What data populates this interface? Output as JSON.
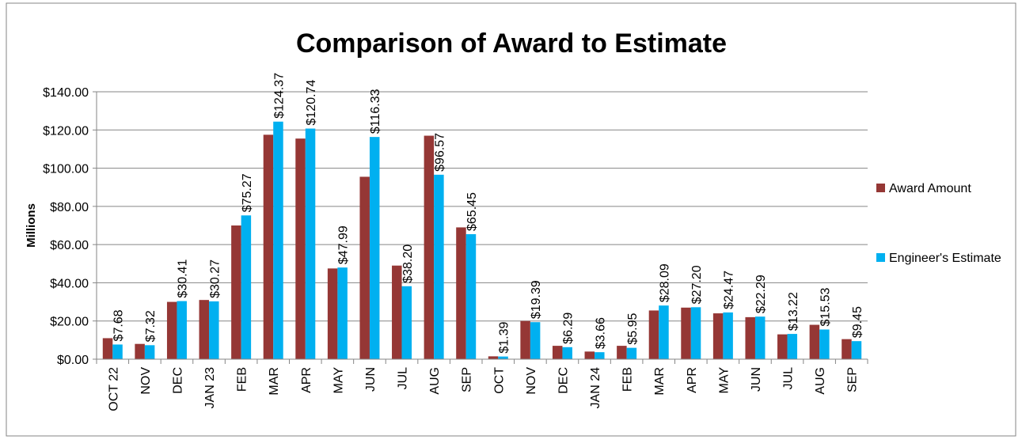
{
  "chart_data": {
    "type": "bar",
    "title": "Comparison of Award to Estimate",
    "y_label": "Millions",
    "categories": [
      "OCT 22",
      "NOV",
      "DEC",
      "JAN 23",
      "FEB",
      "MAR",
      "APR",
      "MAY",
      "JUN",
      "JUL",
      "AUG",
      "SEP",
      "OCT",
      "NOV",
      "DEC",
      "JAN 24",
      "FEB",
      "MAR",
      "APR",
      "MAY",
      "JUN",
      "JUL",
      "AUG",
      "SEP"
    ],
    "series": [
      {
        "name": "Award Amount",
        "color": "#953735",
        "values": [
          11,
          8,
          30,
          31,
          70,
          117.5,
          115.5,
          47.5,
          95.5,
          49,
          117,
          69,
          1.5,
          20,
          7,
          4,
          7,
          25.5,
          27,
          24,
          22,
          13,
          18,
          10.5
        ]
      },
      {
        "name": "Engineer's Estimate",
        "color": "#00b0f0",
        "values": [
          7.68,
          7.32,
          30.41,
          30.27,
          75.27,
          124.37,
          120.74,
          47.99,
          116.33,
          38.2,
          96.57,
          65.45,
          1.39,
          19.39,
          6.29,
          3.66,
          5.95,
          28.09,
          27.2,
          24.47,
          22.29,
          13.22,
          15.53,
          9.45
        ],
        "value_labels": [
          "$7.68",
          "$7.32",
          "$30.41",
          "$30.27",
          "$75.27",
          "$124.37",
          "$120.74",
          "$47.99",
          "$116.33",
          "$38.20",
          "$96.57",
          "$65.45",
          "$1.39",
          "$19.39",
          "$6.29",
          "$3.66",
          "$5.95",
          "$28.09",
          "$27.20",
          "$24.47",
          "$22.29",
          "$13.22",
          "$15.53",
          "$9.45"
        ]
      }
    ],
    "ylim": [
      0,
      140
    ],
    "yticks": [
      {
        "value": 0,
        "label": "$0.00"
      },
      {
        "value": 20,
        "label": "$20.00"
      },
      {
        "value": 40,
        "label": "$40.00"
      },
      {
        "value": 60,
        "label": "$60.00"
      },
      {
        "value": 80,
        "label": "$80.00"
      },
      {
        "value": 100,
        "label": "$100.00"
      },
      {
        "value": 120,
        "label": "$120.00"
      },
      {
        "value": 140,
        "label": "$140.00"
      }
    ],
    "grid": true,
    "legend": "right"
  }
}
